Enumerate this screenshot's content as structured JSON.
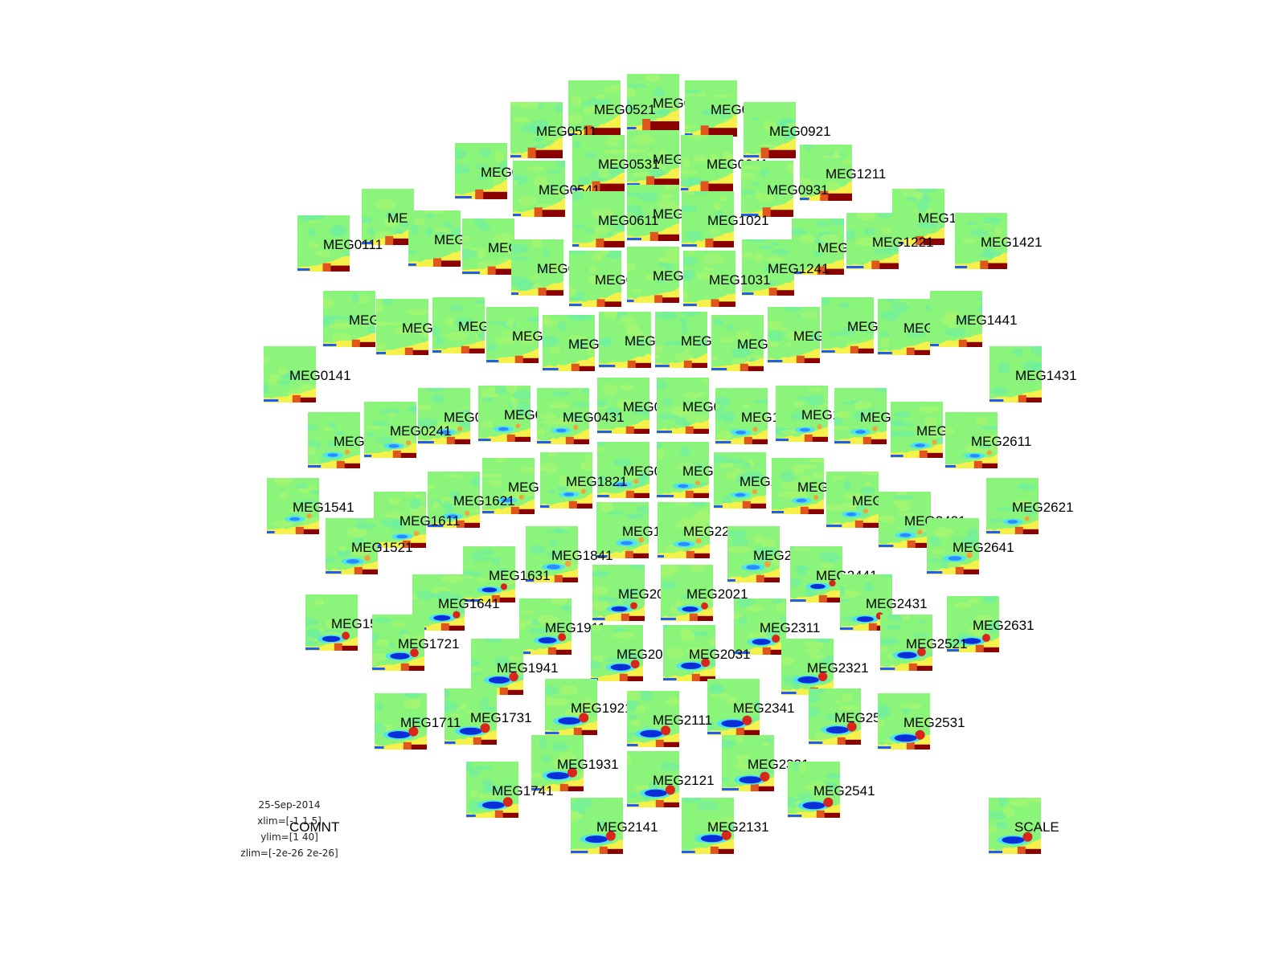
{
  "chart_data": {
    "type": "heatmap",
    "layout": "sensor-topography",
    "colormap": "jet",
    "xlim": [
      -1,
      1.5
    ],
    "ylim": [
      1,
      40
    ],
    "zlim": [
      "-2e-26",
      "2e-26"
    ],
    "date": "25-Sep-2014",
    "info_lines": [
      "25-Sep-2014",
      "xlim=[-1 1.5]",
      "ylim=[1 40]",
      "zlim=[-2e-26 2e-26]"
    ],
    "comment_label": "COMNT",
    "scale_label": "SCALE",
    "channels": [
      "MEG0811",
      "MEG0521",
      "MEG0911",
      "MEG0511",
      "MEG0921",
      "MEG0821",
      "MEG0531",
      "MEG0941",
      "MEG0311",
      "MEG1211",
      "MEG0541",
      "MEG0931",
      "MEG0121",
      "MEG1011",
      "MEG0611",
      "MEG1021",
      "MEG1411",
      "MEG0111",
      "MEG0341",
      "MEG0321",
      "MEG1231",
      "MEG1221",
      "MEG1421",
      "MEG0331",
      "MEG1241",
      "MEG0641",
      "MEG0621",
      "MEG1031",
      "MEG0131",
      "MEG0211",
      "MEG0221",
      "MEG0411",
      "MEG0421",
      "MEG0631",
      "MEG1041",
      "MEG1111",
      "MEG1121",
      "MEG1311",
      "MEG1321",
      "MEG1441",
      "MEG0141",
      "MEG1431",
      "MEG0711",
      "MEG0721",
      "MEG0231",
      "MEG0441",
      "MEG0431",
      "MEG1141",
      "MEG1131",
      "MEG1341",
      "MEG1511",
      "MEG0241",
      "MEG1331",
      "MEG2611",
      "MEG0741",
      "MEG0731",
      "MEG1811",
      "MEG1821",
      "MEG2211",
      "MEG2221",
      "MEG1621",
      "MEG1541",
      "MEG2411",
      "MEG2621",
      "MEG1611",
      "MEG2421",
      "MEG1831",
      "MEG2241",
      "MEG1521",
      "MEG2641",
      "MEG1841",
      "MEG2231",
      "MEG1631",
      "MEG2441",
      "MEG2011",
      "MEG2021",
      "MEG1641",
      "MEG2431",
      "MEG1911",
      "MEG2311",
      "MEG1531",
      "MEG2631",
      "MEG1721",
      "MEG2521",
      "MEG2041",
      "MEG2031",
      "MEG1941",
      "MEG2321",
      "MEG1921",
      "MEG2341",
      "MEG1731",
      "MEG1711",
      "MEG2111",
      "MEG2511",
      "MEG2531",
      "MEG1931",
      "MEG2331",
      "MEG2121",
      "MEG1741",
      "MEG2541",
      "MEG2141",
      "MEG2131"
    ]
  }
}
